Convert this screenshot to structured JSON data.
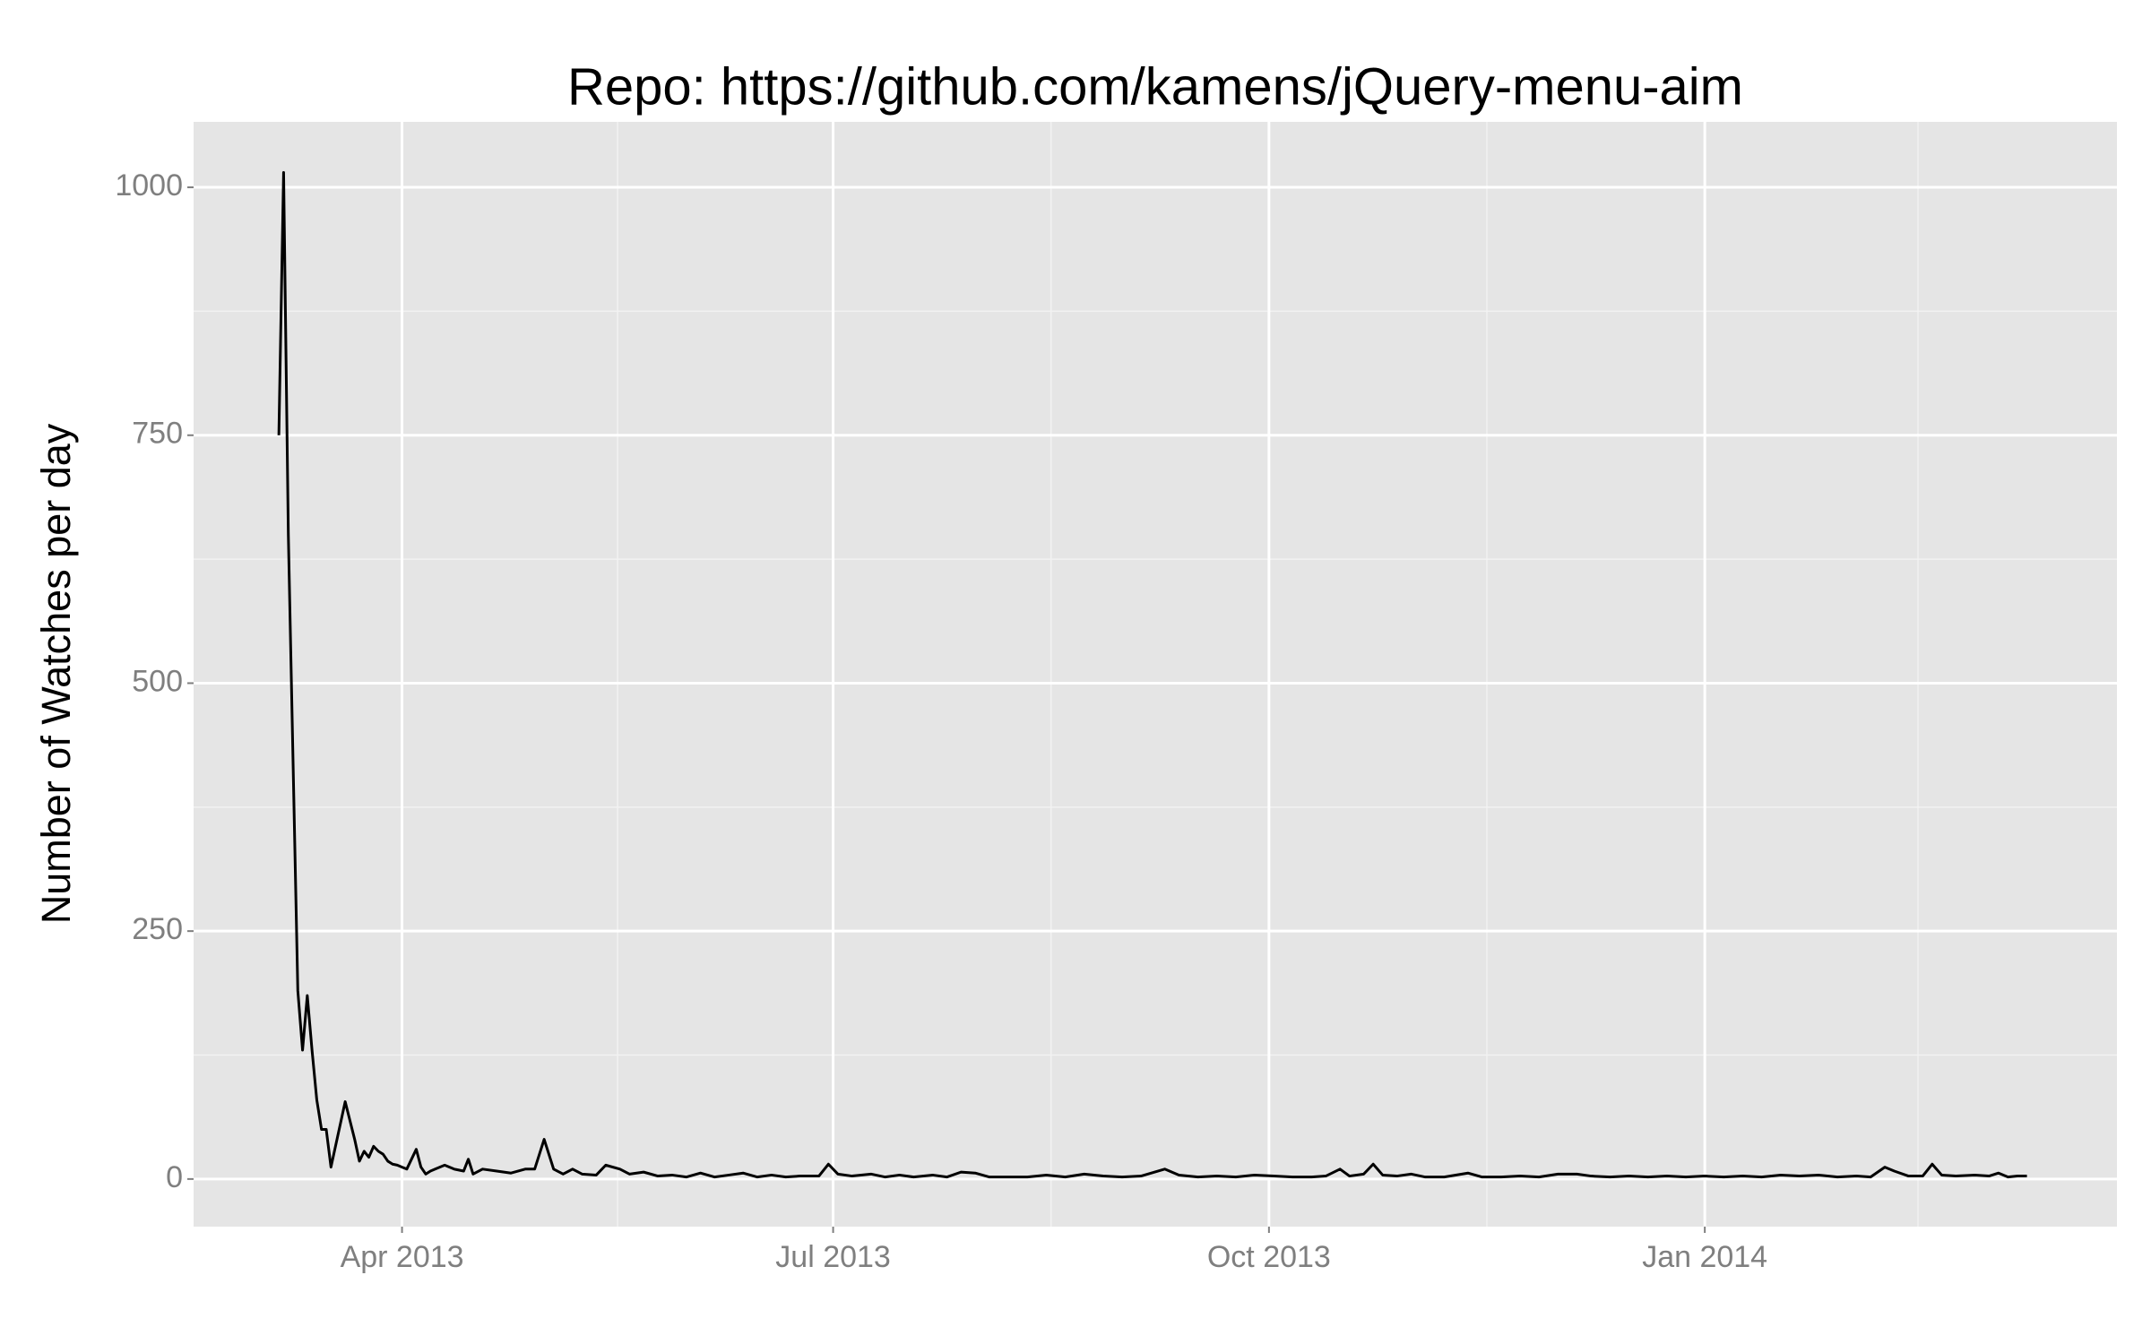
{
  "chart_data": {
    "type": "line",
    "title": "Repo: https://github.com/kamens/jQuery-menu-aim",
    "ylabel": "Number of Watches per day",
    "x": [
      -26,
      -25,
      -24,
      -23,
      -22,
      -21,
      -20,
      -19,
      -18,
      -17,
      -16,
      -15,
      -12,
      -10,
      -9,
      -8,
      -7,
      -6,
      -5,
      -4,
      -3,
      -2,
      -1,
      0,
      1,
      3,
      4,
      5,
      6,
      7,
      9,
      11,
      13,
      14,
      15,
      17,
      20,
      23,
      26,
      28,
      30,
      32,
      34,
      36,
      38,
      41,
      43,
      46,
      48,
      51,
      54,
      57,
      60,
      63,
      66,
      69,
      72,
      75,
      78,
      81,
      84,
      88,
      90,
      92,
      95,
      99,
      102,
      105,
      108,
      112,
      115,
      118,
      121,
      124,
      128,
      132,
      136,
      140,
      144,
      148,
      152,
      156,
      161,
      164,
      168,
      172,
      176,
      180,
      184,
      188,
      192,
      195,
      198,
      200,
      203,
      205,
      207,
      210,
      213,
      216,
      220,
      225,
      228,
      232,
      236,
      240,
      244,
      248,
      251,
      255,
      259,
      263,
      267,
      271,
      275,
      279,
      283,
      287,
      291,
      295,
      299,
      303,
      307,
      310,
      313,
      315,
      318,
      321,
      323,
      325,
      328,
      332,
      335,
      337,
      339,
      341,
      343
    ],
    "series": [
      {
        "name": "watches",
        "color": "#000000",
        "values": [
          750,
          1015,
          650,
          420,
          190,
          130,
          185,
          130,
          80,
          50,
          50,
          12,
          78,
          40,
          18,
          28,
          22,
          33,
          28,
          25,
          18,
          15,
          14,
          12,
          10,
          30,
          12,
          5,
          8,
          10,
          14,
          10,
          8,
          20,
          5,
          10,
          8,
          6,
          10,
          10,
          40,
          10,
          5,
          10,
          5,
          4,
          14,
          10,
          5,
          7,
          3,
          4,
          2,
          6,
          2,
          4,
          6,
          2,
          4,
          2,
          3,
          3,
          15,
          5,
          3,
          5,
          2,
          4,
          2,
          4,
          2,
          7,
          6,
          2,
          2,
          2,
          4,
          2,
          5,
          3,
          2,
          3,
          10,
          4,
          2,
          3,
          2,
          4,
          3,
          2,
          2,
          3,
          10,
          3,
          5,
          15,
          4,
          3,
          5,
          2,
          2,
          6,
          2,
          2,
          3,
          2,
          5,
          5,
          3,
          2,
          3,
          2,
          3,
          2,
          3,
          2,
          3,
          2,
          4,
          3,
          4,
          2,
          3,
          2,
          12,
          8,
          3,
          3,
          15,
          4,
          3,
          4,
          3,
          6,
          2,
          3,
          3
        ]
      }
    ],
    "xlim": [
      -44,
      362
    ],
    "xticks": [
      {
        "value": 0,
        "label": "Apr 2013"
      },
      {
        "value": 91,
        "label": "Jul 2013"
      },
      {
        "value": 183,
        "label": "Oct 2013"
      },
      {
        "value": 275,
        "label": "Jan 2014"
      }
    ],
    "xminor": [
      45.5,
      137,
      229,
      320
    ],
    "ylim": [
      -48,
      1066
    ],
    "yticks": [
      0,
      250,
      500,
      750,
      1000
    ],
    "yminor": [
      125,
      375,
      625,
      875
    ],
    "grid": true
  }
}
